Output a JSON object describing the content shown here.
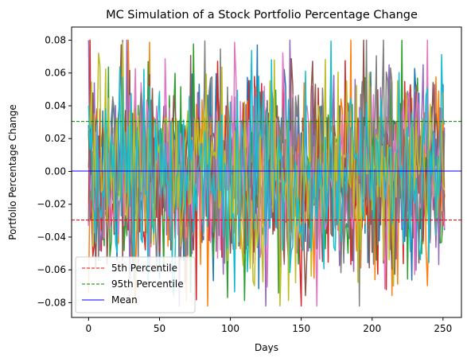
{
  "chart_data": {
    "type": "line",
    "title": "MC Simulation of a Stock Portfolio Percentage Change",
    "xlabel": "Days",
    "ylabel": "Portfolio Percentage Change",
    "xlim": [
      -12,
      263
    ],
    "ylim": [
      -0.089,
      0.088
    ],
    "xticks": [
      0,
      50,
      100,
      150,
      200,
      250
    ],
    "yticks": [
      -0.08,
      -0.06,
      -0.04,
      -0.02,
      0.0,
      0.02,
      0.04,
      0.06,
      0.08
    ],
    "ytick_labels": [
      "−0.08",
      "−0.06",
      "−0.04",
      "−0.02",
      "0.00",
      "0.02",
      "0.04",
      "0.06",
      "0.08"
    ],
    "days": 252,
    "simulation_count": 10,
    "simulation_std": 0.0305,
    "simulation_colors": [
      "#1f77b4",
      "#ff7f0e",
      "#2ca02c",
      "#d62728",
      "#9467bd",
      "#8c564b",
      "#e377c2",
      "#7f7f7f",
      "#bcbd22",
      "#17becf"
    ],
    "reference_lines": [
      {
        "name": "5th Percentile",
        "value": -0.0296,
        "color": "#ff0000",
        "style": "dashed"
      },
      {
        "name": "95th Percentile",
        "value": 0.0305,
        "color": "#008000",
        "style": "dashed"
      },
      {
        "name": "Mean",
        "value": 0.0002,
        "color": "#0000ff",
        "style": "solid"
      }
    ],
    "legend_position": "lower-left",
    "grid": false
  }
}
